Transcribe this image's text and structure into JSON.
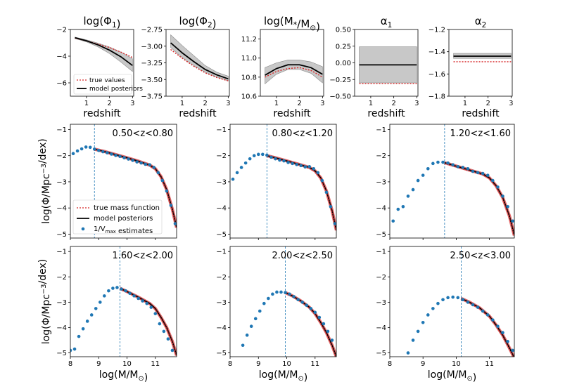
{
  "chart_data": [
    {
      "type": "line",
      "title": "log(Φ1)",
      "xlabel": "redshift",
      "xlim": [
        0.3,
        3.05
      ],
      "ylim": [
        -7.0,
        -2.0
      ],
      "xticks": [
        "1",
        "2",
        "3"
      ],
      "yticks": [
        "-2",
        "-4",
        "-6"
      ],
      "legend": [
        "true values",
        "model posteriors"
      ],
      "series": [
        {
          "name": "true values",
          "x": [
            0.5,
            1,
            1.5,
            2,
            2.5,
            3
          ],
          "values": [
            -2.65,
            -2.85,
            -3.1,
            -3.35,
            -3.7,
            -4.1
          ]
        },
        {
          "name": "model posteriors",
          "x": [
            0.5,
            1,
            1.5,
            2,
            2.5,
            3
          ],
          "values": [
            -2.62,
            -2.85,
            -3.15,
            -3.55,
            -4.05,
            -4.7
          ]
        },
        {
          "name": "posterior lower",
          "x": [
            0.5,
            1,
            1.5,
            2,
            2.5,
            3
          ],
          "values": [
            -2.67,
            -2.93,
            -3.3,
            -3.8,
            -4.45,
            -5.15
          ]
        },
        {
          "name": "posterior upper",
          "x": [
            0.5,
            1,
            1.5,
            2,
            2.5,
            3
          ],
          "values": [
            -2.57,
            -2.78,
            -3.02,
            -3.32,
            -3.7,
            -4.2
          ]
        }
      ]
    },
    {
      "type": "line",
      "title": "log(Φ2)",
      "xlabel": "redshift",
      "xlim": [
        0.3,
        3.05
      ],
      "ylim": [
        -3.75,
        -2.75
      ],
      "xticks": [
        "1",
        "2",
        "3"
      ],
      "yticks": [
        "-2.75",
        "-3.00",
        "-3.25",
        "-3.50",
        "-3.75"
      ],
      "series": [
        {
          "name": "true values",
          "x": [
            0.5,
            1,
            1.5,
            2,
            2.5,
            3
          ],
          "values": [
            -3.05,
            -3.18,
            -3.3,
            -3.4,
            -3.47,
            -3.52
          ]
        },
        {
          "name": "model posteriors",
          "x": [
            0.5,
            1,
            1.5,
            2,
            2.5,
            3
          ],
          "values": [
            -2.95,
            -3.1,
            -3.23,
            -3.35,
            -3.43,
            -3.49
          ]
        },
        {
          "name": "posterior lower",
          "x": [
            0.5,
            1,
            1.5,
            2,
            2.5,
            3
          ],
          "values": [
            -3.02,
            -3.17,
            -3.29,
            -3.39,
            -3.46,
            -3.52
          ]
        },
        {
          "name": "posterior upper",
          "x": [
            0.5,
            1,
            1.5,
            2,
            2.5,
            3
          ],
          "values": [
            -2.83,
            -2.99,
            -3.14,
            -3.29,
            -3.39,
            -3.45
          ]
        }
      ]
    },
    {
      "type": "line",
      "title": "log(M*/M⊙)",
      "xlabel": "redshift",
      "xlim": [
        0.3,
        3.05
      ],
      "ylim": [
        10.6,
        11.3
      ],
      "xticks": [
        "1",
        "2",
        "3"
      ],
      "yticks": [
        "11.2",
        "11.0",
        "10.8",
        "10.6"
      ],
      "series": [
        {
          "name": "true values",
          "x": [
            0.5,
            1,
            1.5,
            2,
            2.5,
            3
          ],
          "values": [
            10.8,
            10.86,
            10.89,
            10.9,
            10.87,
            10.8
          ]
        },
        {
          "name": "model posteriors",
          "x": [
            0.5,
            1,
            1.5,
            2,
            2.5,
            3
          ],
          "values": [
            10.82,
            10.89,
            10.93,
            10.93,
            10.9,
            10.83
          ]
        },
        {
          "name": "posterior lower",
          "x": [
            0.5,
            1,
            1.5,
            2,
            2.5,
            3
          ],
          "values": [
            10.73,
            10.83,
            10.88,
            10.88,
            10.84,
            10.74
          ]
        },
        {
          "name": "posterior upper",
          "x": [
            0.5,
            1,
            1.5,
            2,
            2.5,
            3
          ],
          "values": [
            10.9,
            10.95,
            10.98,
            10.98,
            10.96,
            10.91
          ]
        }
      ]
    },
    {
      "type": "line",
      "title": "α1",
      "xlabel": "redshift",
      "xlim": [
        0.3,
        3.05
      ],
      "ylim": [
        -0.5,
        0.5
      ],
      "xticks": [
        "1",
        "2",
        "3"
      ],
      "yticks": [
        "0.50",
        "0.25",
        "0.00",
        "-0.25",
        "-0.50"
      ],
      "series": [
        {
          "name": "true values",
          "x": [
            0.5,
            3
          ],
          "values": [
            -0.31,
            -0.31
          ]
        },
        {
          "name": "model posteriors",
          "x": [
            0.5,
            3
          ],
          "values": [
            -0.03,
            -0.03
          ]
        },
        {
          "name": "posterior lower",
          "x": [
            0.5,
            3
          ],
          "values": [
            -0.3,
            -0.3
          ]
        },
        {
          "name": "posterior upper",
          "x": [
            0.5,
            3
          ],
          "values": [
            0.24,
            0.24
          ]
        }
      ]
    },
    {
      "type": "line",
      "title": "α2",
      "xlabel": "redshift",
      "xlim": [
        0.3,
        3.05
      ],
      "ylim": [
        -1.8,
        -1.2
      ],
      "xticks": [
        "1",
        "2",
        "3"
      ],
      "yticks": [
        "-1.2",
        "-1.4",
        "-1.6",
        "-1.8"
      ],
      "series": [
        {
          "name": "true values",
          "x": [
            0.5,
            3
          ],
          "values": [
            -1.49,
            -1.49
          ]
        },
        {
          "name": "model posteriors",
          "x": [
            0.5,
            3
          ],
          "values": [
            -1.44,
            -1.44
          ]
        },
        {
          "name": "posterior lower",
          "x": [
            0.5,
            3
          ],
          "values": [
            -1.46,
            -1.46
          ]
        },
        {
          "name": "posterior upper",
          "x": [
            0.5,
            3
          ],
          "values": [
            -1.415,
            -1.415
          ]
        }
      ]
    },
    {
      "type": "scatter",
      "title": "0.50<z<0.80",
      "xlabel": "",
      "ylabel": "log(Φ/Mpc⁻³/dex)",
      "xlim": [
        8.0,
        11.75
      ],
      "ylim": [
        -5.15,
        -0.8
      ],
      "yticks": [
        "-1",
        "-2",
        "-3",
        "-4",
        "-5"
      ],
      "mass_limit": 8.85,
      "legend": [
        "true mass function",
        "model posteriors",
        "1/Vmax estimates"
      ],
      "points_x": [
        8.1,
        8.25,
        8.4,
        8.55,
        8.7,
        8.85,
        9.0,
        9.15,
        9.3,
        9.45,
        9.6,
        9.75,
        9.9,
        10.05,
        10.2,
        10.35,
        10.5,
        10.65,
        10.8,
        10.95,
        11.1,
        11.25,
        11.4,
        11.55,
        11.7
      ],
      "points_y": [
        -1.92,
        -1.82,
        -1.74,
        -1.67,
        -1.68,
        -1.75,
        -1.8,
        -1.85,
        -1.89,
        -1.94,
        -1.99,
        -2.03,
        -2.08,
        -2.13,
        -2.18,
        -2.24,
        -2.28,
        -2.33,
        -2.35,
        -2.45,
        -2.65,
        -2.95,
        -3.35,
        -3.9,
        -4.6
      ],
      "model_x": [
        8.85,
        9.2,
        9.6,
        10.0,
        10.4,
        10.8,
        11.0,
        11.2,
        11.4,
        11.6,
        11.75
      ],
      "model_y": [
        -1.75,
        -1.84,
        -1.96,
        -2.08,
        -2.21,
        -2.36,
        -2.5,
        -2.8,
        -3.3,
        -4.05,
        -4.75
      ]
    },
    {
      "type": "scatter",
      "title": "0.80<z<1.20",
      "xlim": [
        8.0,
        11.75
      ],
      "ylim": [
        -5.15,
        -0.8
      ],
      "yticks": [
        "-1",
        "-2",
        "-3",
        "-4",
        "-5"
      ],
      "mass_limit": 9.3,
      "points_x": [
        8.1,
        8.25,
        8.4,
        8.55,
        8.7,
        8.85,
        9.0,
        9.15,
        9.3,
        9.45,
        9.6,
        9.75,
        9.9,
        10.05,
        10.2,
        10.35,
        10.5,
        10.65,
        10.8,
        10.95,
        11.1,
        11.25,
        11.4,
        11.55,
        11.7
      ],
      "points_y": [
        -2.9,
        -2.65,
        -2.45,
        -2.28,
        -2.12,
        -2.0,
        -1.95,
        -1.95,
        -1.98,
        -2.06,
        -2.12,
        -2.17,
        -2.2,
        -2.26,
        -2.3,
        -2.34,
        -2.38,
        -2.43,
        -2.42,
        -2.5,
        -2.65,
        -2.95,
        -3.4,
        -3.95,
        -4.6
      ],
      "model_x": [
        9.3,
        9.6,
        10.0,
        10.4,
        10.8,
        11.0,
        11.2,
        11.4,
        11.6,
        11.75
      ],
      "model_y": [
        -2.0,
        -2.08,
        -2.2,
        -2.32,
        -2.45,
        -2.58,
        -2.85,
        -3.35,
        -4.1,
        -4.85
      ]
    },
    {
      "type": "scatter",
      "title": "1.20<z<1.60",
      "xlim": [
        8.0,
        11.75
      ],
      "ylim": [
        -5.15,
        -0.8
      ],
      "yticks": [
        "-1",
        "-2",
        "-3",
        "-4",
        "-5"
      ],
      "mass_limit": 9.65,
      "points_x": [
        8.1,
        8.25,
        8.4,
        8.55,
        8.7,
        8.85,
        9.0,
        9.15,
        9.3,
        9.45,
        9.6,
        9.75,
        9.9,
        10.05,
        10.2,
        10.35,
        10.5,
        10.65,
        10.8,
        10.95,
        11.1,
        11.25,
        11.4,
        11.55,
        11.7
      ],
      "points_y": [
        -4.5,
        -4.05,
        -3.95,
        -3.55,
        -3.3,
        -2.95,
        -2.75,
        -2.5,
        -2.3,
        -2.25,
        -2.25,
        -2.28,
        -2.35,
        -2.42,
        -2.45,
        -2.5,
        -2.6,
        -2.65,
        -2.68,
        -2.75,
        -2.95,
        -3.2,
        -3.55,
        -3.95,
        -4.5
      ],
      "model_x": [
        9.65,
        10.0,
        10.4,
        10.8,
        11.0,
        11.2,
        11.4,
        11.6,
        11.75
      ],
      "model_y": [
        -2.27,
        -2.4,
        -2.55,
        -2.7,
        -2.85,
        -3.15,
        -3.6,
        -4.3,
        -5.05
      ]
    },
    {
      "type": "scatter",
      "title": "1.60<z<2.00",
      "xlabel": "log(M/M⊙)",
      "ylabel": "log(Φ/Mpc⁻³/dex)",
      "xlim": [
        8.0,
        11.75
      ],
      "ylim": [
        -5.15,
        -0.8
      ],
      "xticks": [
        "8",
        "9",
        "10",
        "11"
      ],
      "yticks": [
        "-1",
        "-2",
        "-3",
        "-4",
        "-5"
      ],
      "mass_limit": 9.75,
      "points_x": [
        8.0,
        8.15,
        8.3,
        8.45,
        8.6,
        8.75,
        8.9,
        9.05,
        9.2,
        9.35,
        9.5,
        9.65,
        9.8,
        9.95,
        10.1,
        10.25,
        10.4,
        10.55,
        10.7,
        10.85,
        11.0,
        11.15,
        11.3,
        11.45,
        11.6
      ],
      "points_y": [
        -4.9,
        -4.85,
        -4.35,
        -4.05,
        -3.75,
        -3.5,
        -3.25,
        -3.0,
        -2.75,
        -2.55,
        -2.45,
        -2.42,
        -2.48,
        -2.55,
        -2.65,
        -2.75,
        -2.85,
        -2.95,
        -3.05,
        -3.2,
        -3.45,
        -3.85,
        -4.15,
        -4.45,
        -4.9
      ],
      "model_x": [
        9.75,
        10.0,
        10.4,
        10.8,
        11.0,
        11.2,
        11.4,
        11.6,
        11.75
      ],
      "model_y": [
        -2.45,
        -2.58,
        -2.8,
        -3.05,
        -3.25,
        -3.6,
        -4.0,
        -4.55,
        -5.1
      ]
    },
    {
      "type": "scatter",
      "title": "2.00<z<2.50",
      "xlabel": "log(M/M⊙)",
      "xlim": [
        8.0,
        11.75
      ],
      "ylim": [
        -5.15,
        -0.8
      ],
      "xticks": [
        "8",
        "9",
        "10",
        "11"
      ],
      "yticks": [
        "-1",
        "-2",
        "-3",
        "-4",
        "-5"
      ],
      "mass_limit": 9.95,
      "points_x": [
        8.45,
        8.6,
        8.75,
        8.9,
        9.05,
        9.2,
        9.35,
        9.5,
        9.65,
        9.8,
        9.95,
        10.1,
        10.25,
        10.4,
        10.55,
        10.7,
        10.85,
        11.0,
        11.15,
        11.3,
        11.45,
        11.6
      ],
      "points_y": [
        -4.7,
        -4.3,
        -3.95,
        -3.65,
        -3.35,
        -3.05,
        -2.85,
        -2.68,
        -2.6,
        -2.6,
        -2.62,
        -2.68,
        -2.78,
        -2.9,
        -3.0,
        -3.12,
        -3.25,
        -3.4,
        -3.6,
        -3.85,
        -4.15,
        -4.5
      ],
      "model_x": [
        9.95,
        10.2,
        10.5,
        10.8,
        11.0,
        11.2,
        11.4,
        11.6,
        11.75
      ],
      "model_y": [
        -2.62,
        -2.75,
        -2.95,
        -3.2,
        -3.45,
        -3.8,
        -4.2,
        -4.7,
        -5.15
      ]
    },
    {
      "type": "scatter",
      "title": "2.50<z<3.00",
      "xlabel": "log(M/M⊙)",
      "xlim": [
        8.0,
        11.75
      ],
      "ylim": [
        -5.15,
        -0.8
      ],
      "xticks": [
        "8",
        "9",
        "10",
        "11"
      ],
      "yticks": [
        "-1",
        "-2",
        "-3",
        "-4",
        "-5"
      ],
      "mass_limit": 10.15,
      "points_x": [
        8.55,
        8.7,
        8.85,
        9.0,
        9.15,
        9.3,
        9.45,
        9.6,
        9.75,
        9.9,
        10.05,
        10.2,
        10.35,
        10.5,
        10.65,
        10.8,
        10.95,
        11.1,
        11.25,
        11.4,
        11.55,
        11.7
      ],
      "points_y": [
        -5.0,
        -4.5,
        -4.15,
        -3.8,
        -3.5,
        -3.25,
        -3.05,
        -2.9,
        -2.82,
        -2.8,
        -2.82,
        -2.9,
        -3.0,
        -3.1,
        -3.2,
        -3.35,
        -3.5,
        -3.7,
        -3.95,
        -4.2,
        -4.55,
        -4.9
      ],
      "model_x": [
        10.15,
        10.4,
        10.7,
        11.0,
        11.2,
        11.4,
        11.6,
        11.75
      ],
      "model_y": [
        -2.85,
        -3.0,
        -3.22,
        -3.55,
        -3.9,
        -4.3,
        -4.8,
        -5.2
      ]
    }
  ]
}
